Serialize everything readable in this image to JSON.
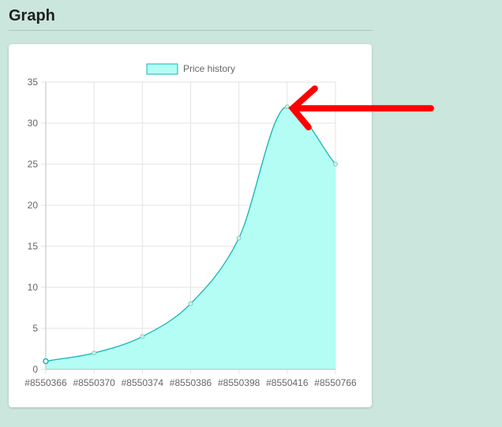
{
  "page": {
    "title": "Graph"
  },
  "colors": {
    "background": "#cbe6dd",
    "fill": "#b3fdf4",
    "line": "#13b5b1",
    "grid": "#e3e3e3",
    "arrow": "#ff0000"
  },
  "chart_data": {
    "type": "area",
    "legend": {
      "label": "Price history",
      "position": "top"
    },
    "categories": [
      "#8550366",
      "#8550370",
      "#8550374",
      "#8550386",
      "#8550398",
      "#8550416",
      "#8550766"
    ],
    "series": [
      {
        "name": "Price history",
        "values": [
          1,
          2,
          4,
          8,
          16,
          32,
          25
        ]
      }
    ],
    "ylim": [
      0,
      35
    ],
    "yticks": [
      "0",
      "5",
      "10",
      "15",
      "20",
      "25",
      "30",
      "35"
    ],
    "grid": true,
    "annotation": {
      "type": "arrow",
      "points_to_category": "#8550416"
    }
  }
}
